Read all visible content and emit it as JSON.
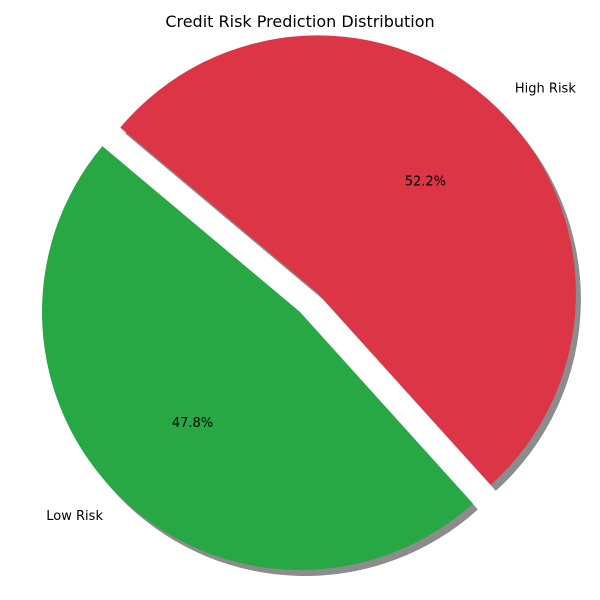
{
  "chart_data": {
    "type": "pie",
    "title": "Credit Risk Prediction Distribution",
    "slices": [
      {
        "label": "Low Risk",
        "value": 47.8,
        "percent_label": "47.8%",
        "color": "#28a745",
        "exploded": false
      },
      {
        "label": "High Risk",
        "value": 52.2,
        "percent_label": "52.2%",
        "color": "#dc3545",
        "exploded": true
      }
    ],
    "shadow": true,
    "legend": "none"
  }
}
